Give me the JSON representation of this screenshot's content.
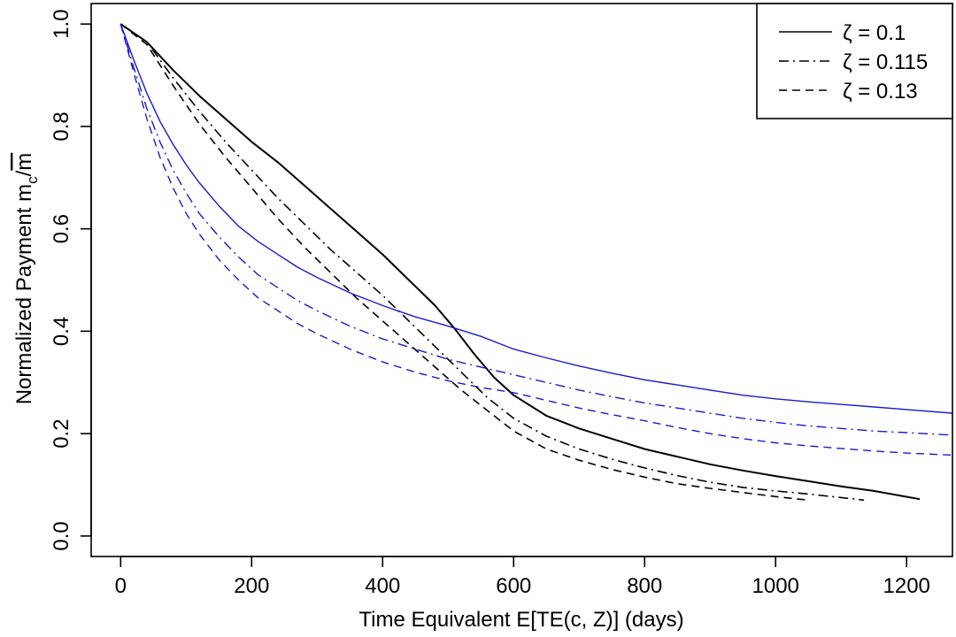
{
  "chart_data": {
    "type": "line",
    "title": "",
    "xlabel": "Time Equivalent E[TE(c, Z)] (days)",
    "ylabel": "Normalized Payment m_c/m̄",
    "ylabel_parts": {
      "main": "Normalized Payment m",
      "sub": "c",
      "slash": "/",
      "bar": "m"
    },
    "xlim": [
      -45,
      1270
    ],
    "ylim": [
      -0.04,
      1.04
    ],
    "xticks": [
      0,
      200,
      400,
      600,
      800,
      1000,
      1200
    ],
    "xtick_labels": [
      "0",
      "200",
      "400",
      "600",
      "800",
      "1000",
      "1200"
    ],
    "yticks": [
      0.0,
      0.2,
      0.4,
      0.6,
      0.8,
      1.0
    ],
    "ytick_labels": [
      "0.0",
      "0.2",
      "0.4",
      "0.6",
      "0.8",
      "1.0"
    ],
    "legend": {
      "position": "top-right",
      "entries": [
        {
          "label": "ζ = 0.1",
          "dash": "solid"
        },
        {
          "label": "ζ = 0.115",
          "dash": "dashdot"
        },
        {
          "label": "ζ = 0.13",
          "dash": "dashed"
        }
      ]
    },
    "series": [
      {
        "name": "black ζ = 0.1",
        "color": "#000000",
        "dash": "solid",
        "width": 2,
        "x": [
          0,
          40,
          80,
          120,
          160,
          200,
          240,
          280,
          320,
          360,
          400,
          440,
          480,
          510,
          540,
          570,
          600,
          650,
          700,
          750,
          800,
          850,
          900,
          950,
          1000,
          1050,
          1100,
          1150,
          1220
        ],
        "y": [
          1.0,
          0.965,
          0.91,
          0.86,
          0.815,
          0.77,
          0.73,
          0.685,
          0.64,
          0.595,
          0.55,
          0.5,
          0.45,
          0.405,
          0.355,
          0.31,
          0.275,
          0.235,
          0.21,
          0.19,
          0.17,
          0.155,
          0.14,
          0.128,
          0.117,
          0.107,
          0.097,
          0.088,
          0.072
        ]
      },
      {
        "name": "black ζ = 0.115",
        "color": "#000000",
        "dash": "dashdot",
        "width": 1.6,
        "x": [
          0,
          40,
          80,
          120,
          160,
          200,
          240,
          280,
          320,
          360,
          400,
          440,
          480,
          520,
          560,
          600,
          650,
          700,
          750,
          800,
          850,
          900,
          950,
          1000,
          1050,
          1100,
          1135
        ],
        "y": [
          1.0,
          0.965,
          0.895,
          0.83,
          0.77,
          0.715,
          0.66,
          0.61,
          0.56,
          0.515,
          0.47,
          0.42,
          0.37,
          0.32,
          0.27,
          0.23,
          0.195,
          0.17,
          0.15,
          0.133,
          0.118,
          0.105,
          0.095,
          0.088,
          0.082,
          0.075,
          0.07
        ]
      },
      {
        "name": "black ζ = 0.13",
        "color": "#000000",
        "dash": "dashed",
        "width": 1.6,
        "x": [
          0,
          40,
          80,
          120,
          160,
          200,
          240,
          280,
          320,
          360,
          400,
          440,
          480,
          520,
          560,
          600,
          650,
          700,
          750,
          800,
          850,
          900,
          950,
          1000,
          1050
        ],
        "y": [
          1.0,
          0.96,
          0.88,
          0.805,
          0.74,
          0.68,
          0.62,
          0.565,
          0.515,
          0.465,
          0.42,
          0.375,
          0.33,
          0.285,
          0.245,
          0.205,
          0.17,
          0.148,
          0.13,
          0.115,
          0.102,
          0.093,
          0.085,
          0.077,
          0.07
        ]
      },
      {
        "name": "blue ζ = 0.1",
        "color": "#1a1acc",
        "dash": "solid",
        "width": 1.4,
        "x": [
          0,
          20,
          40,
          60,
          80,
          100,
          120,
          150,
          180,
          210,
          240,
          270,
          300,
          350,
          400,
          450,
          500,
          550,
          600,
          650,
          700,
          750,
          800,
          850,
          900,
          950,
          1000,
          1050,
          1100,
          1150,
          1200,
          1270
        ],
        "y": [
          1.0,
          0.93,
          0.865,
          0.81,
          0.765,
          0.725,
          0.69,
          0.645,
          0.605,
          0.575,
          0.55,
          0.525,
          0.505,
          0.475,
          0.45,
          0.428,
          0.41,
          0.39,
          0.365,
          0.348,
          0.332,
          0.318,
          0.305,
          0.295,
          0.285,
          0.275,
          0.268,
          0.262,
          0.257,
          0.252,
          0.247,
          0.24
        ]
      },
      {
        "name": "blue ζ = 0.115",
        "color": "#1a1acc",
        "dash": "dashdot",
        "width": 1.4,
        "x": [
          0,
          20,
          40,
          60,
          80,
          100,
          120,
          150,
          180,
          210,
          240,
          270,
          300,
          350,
          400,
          450,
          500,
          550,
          600,
          650,
          700,
          750,
          800,
          850,
          900,
          950,
          1000,
          1050,
          1100,
          1150,
          1200,
          1270
        ],
        "y": [
          1.0,
          0.915,
          0.835,
          0.77,
          0.715,
          0.67,
          0.63,
          0.585,
          0.545,
          0.51,
          0.485,
          0.46,
          0.44,
          0.41,
          0.385,
          0.365,
          0.345,
          0.33,
          0.315,
          0.3,
          0.285,
          0.272,
          0.26,
          0.25,
          0.24,
          0.23,
          0.222,
          0.215,
          0.21,
          0.205,
          0.202,
          0.197
        ]
      },
      {
        "name": "blue ζ = 0.13",
        "color": "#1a1acc",
        "dash": "dashed",
        "width": 1.4,
        "x": [
          0,
          20,
          40,
          60,
          80,
          100,
          120,
          150,
          180,
          210,
          240,
          270,
          300,
          350,
          400,
          450,
          500,
          550,
          600,
          650,
          700,
          750,
          800,
          850,
          900,
          950,
          1000,
          1050,
          1100,
          1150,
          1200,
          1270
        ],
        "y": [
          1.0,
          0.905,
          0.815,
          0.74,
          0.68,
          0.63,
          0.59,
          0.54,
          0.5,
          0.465,
          0.44,
          0.415,
          0.395,
          0.365,
          0.34,
          0.32,
          0.303,
          0.29,
          0.28,
          0.265,
          0.25,
          0.237,
          0.225,
          0.212,
          0.2,
          0.19,
          0.182,
          0.176,
          0.171,
          0.166,
          0.162,
          0.158
        ]
      }
    ]
  }
}
